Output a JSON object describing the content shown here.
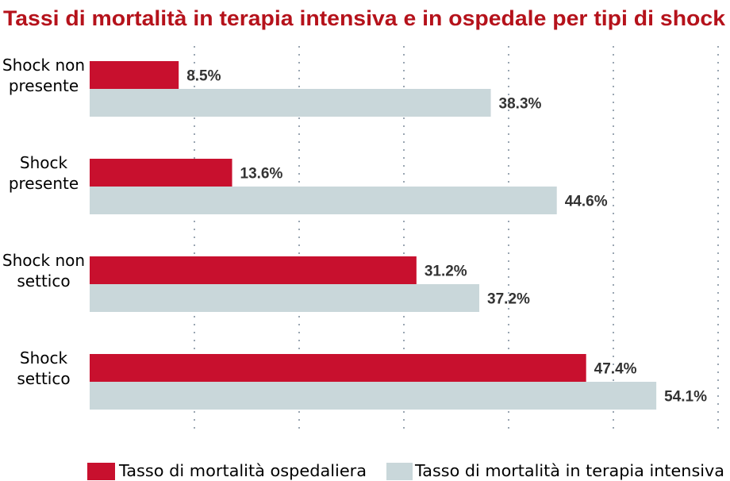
{
  "chart_data": {
    "type": "bar",
    "orientation": "horizontal",
    "title": "Tassi di mortalità in terapia intensiva e in ospedale per tipi di shock",
    "categories": [
      [
        "Shock non",
        "presente"
      ],
      [
        "Shock",
        "presente"
      ],
      [
        "Shock non",
        "settico"
      ],
      [
        "Shock",
        "settico"
      ]
    ],
    "series": [
      {
        "name": "Tasso di mortalità ospedaliera",
        "color": "#c8102e",
        "values": [
          8.5,
          13.6,
          31.2,
          47.4
        ],
        "labels": [
          "8.5%",
          "13.6%",
          "31.2%",
          "47.4%"
        ]
      },
      {
        "name": "Tasso di mortalità in terapia intensiva",
        "color": "#c9d7da",
        "values": [
          38.3,
          44.6,
          37.2,
          54.1
        ],
        "labels": [
          "38.3%",
          "44.6%",
          "37.2%",
          "54.1%"
        ]
      }
    ],
    "xlim": [
      0,
      60
    ],
    "xticks": [
      10,
      20,
      30,
      40,
      50,
      60
    ],
    "grid": "vertical dotted",
    "legend": "bottom",
    "title_color": "#b5121b",
    "xlabel": "",
    "ylabel": ""
  }
}
